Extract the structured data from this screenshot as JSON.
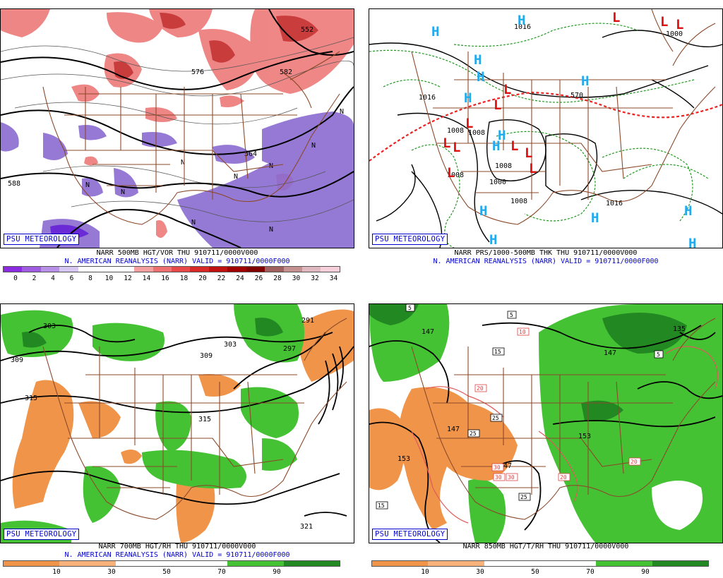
{
  "brand": "PSU METEOROLOGY",
  "reanalysis_line": "N. AMERICAN REANALYSIS (NARR) VALID = 910711/0000F000",
  "panels": {
    "tl": {
      "caption": "NARR 500MB HGT/VOR THU 910711/0000V000",
      "scale_labels": [
        "0",
        "2",
        "4",
        "6",
        "8",
        "10",
        "12",
        "14",
        "16",
        "18",
        "20",
        "22",
        "24",
        "26",
        "28",
        "30",
        "32",
        "34"
      ],
      "scale_colors": [
        "#8a2be2",
        "#a05ce0",
        "#b890e8",
        "#d6c6f2",
        "#ffffff",
        "#ffffff",
        "#ffffff",
        "#f4a0a0",
        "#ee7070",
        "#e84848",
        "#d82828",
        "#c01010",
        "#a00000",
        "#800000",
        "#a06060",
        "#c49090",
        "#e0b8c0",
        "#f8d0dc"
      ],
      "labels": [
        "576",
        "582",
        "588",
        "564",
        "552",
        "N",
        "N",
        "N",
        "N",
        "N",
        "N",
        "N",
        "N",
        "N"
      ]
    },
    "tr": {
      "caption": "NARR PRS/1000-500MB THK THU 910711/0000V000",
      "isobars": [
        "1016",
        "1008",
        "1008",
        "1008",
        "1000",
        "1016",
        "1000",
        "1008",
        "1008",
        "1016",
        "570"
      ],
      "highs": [
        "H",
        "H",
        "H",
        "H",
        "H",
        "H",
        "H",
        "H",
        "H",
        "H",
        "H",
        "H",
        "H"
      ],
      "lows": [
        "L",
        "L",
        "L",
        "L",
        "L",
        "L",
        "L",
        "L",
        "L",
        "L",
        "L",
        "L"
      ]
    },
    "bl": {
      "caption": "NARR 700MB HGT/RH THU 910711/0000V000",
      "scale_labels": [
        "10",
        "30",
        "50",
        "70",
        "90"
      ],
      "labels": [
        "303",
        "309",
        "315",
        "309",
        "303",
        "291",
        "297",
        "315",
        "321"
      ]
    },
    "br": {
      "caption": "NARR 850MB HGT/T/RH THU 910711/0000V000",
      "scale_labels": [
        "10",
        "30",
        "50",
        "70",
        "90"
      ],
      "contour_labels": [
        "147",
        "147",
        "153",
        "153",
        "135",
        "147"
      ],
      "temp_boxes": [
        "5",
        "5",
        "10",
        "15",
        "15",
        "20",
        "20",
        "20",
        "25",
        "25",
        "25",
        "30",
        "30",
        "30",
        "47",
        "5"
      ]
    }
  },
  "rh_scale_colors": [
    "#f0944a",
    "#f6b27a",
    "#ffffff",
    "#ffffff",
    "#44c234",
    "#228822"
  ],
  "colors": {
    "caption_blue": "#0000cc",
    "border_brown": "#8b4a2a",
    "vort_red": "#e85a5a",
    "vort_purple": "#8866cc",
    "rh_green": "#33bb22",
    "rh_orange": "#f0944a",
    "high_blue": "#22aaee",
    "low_red": "#dd1111"
  }
}
